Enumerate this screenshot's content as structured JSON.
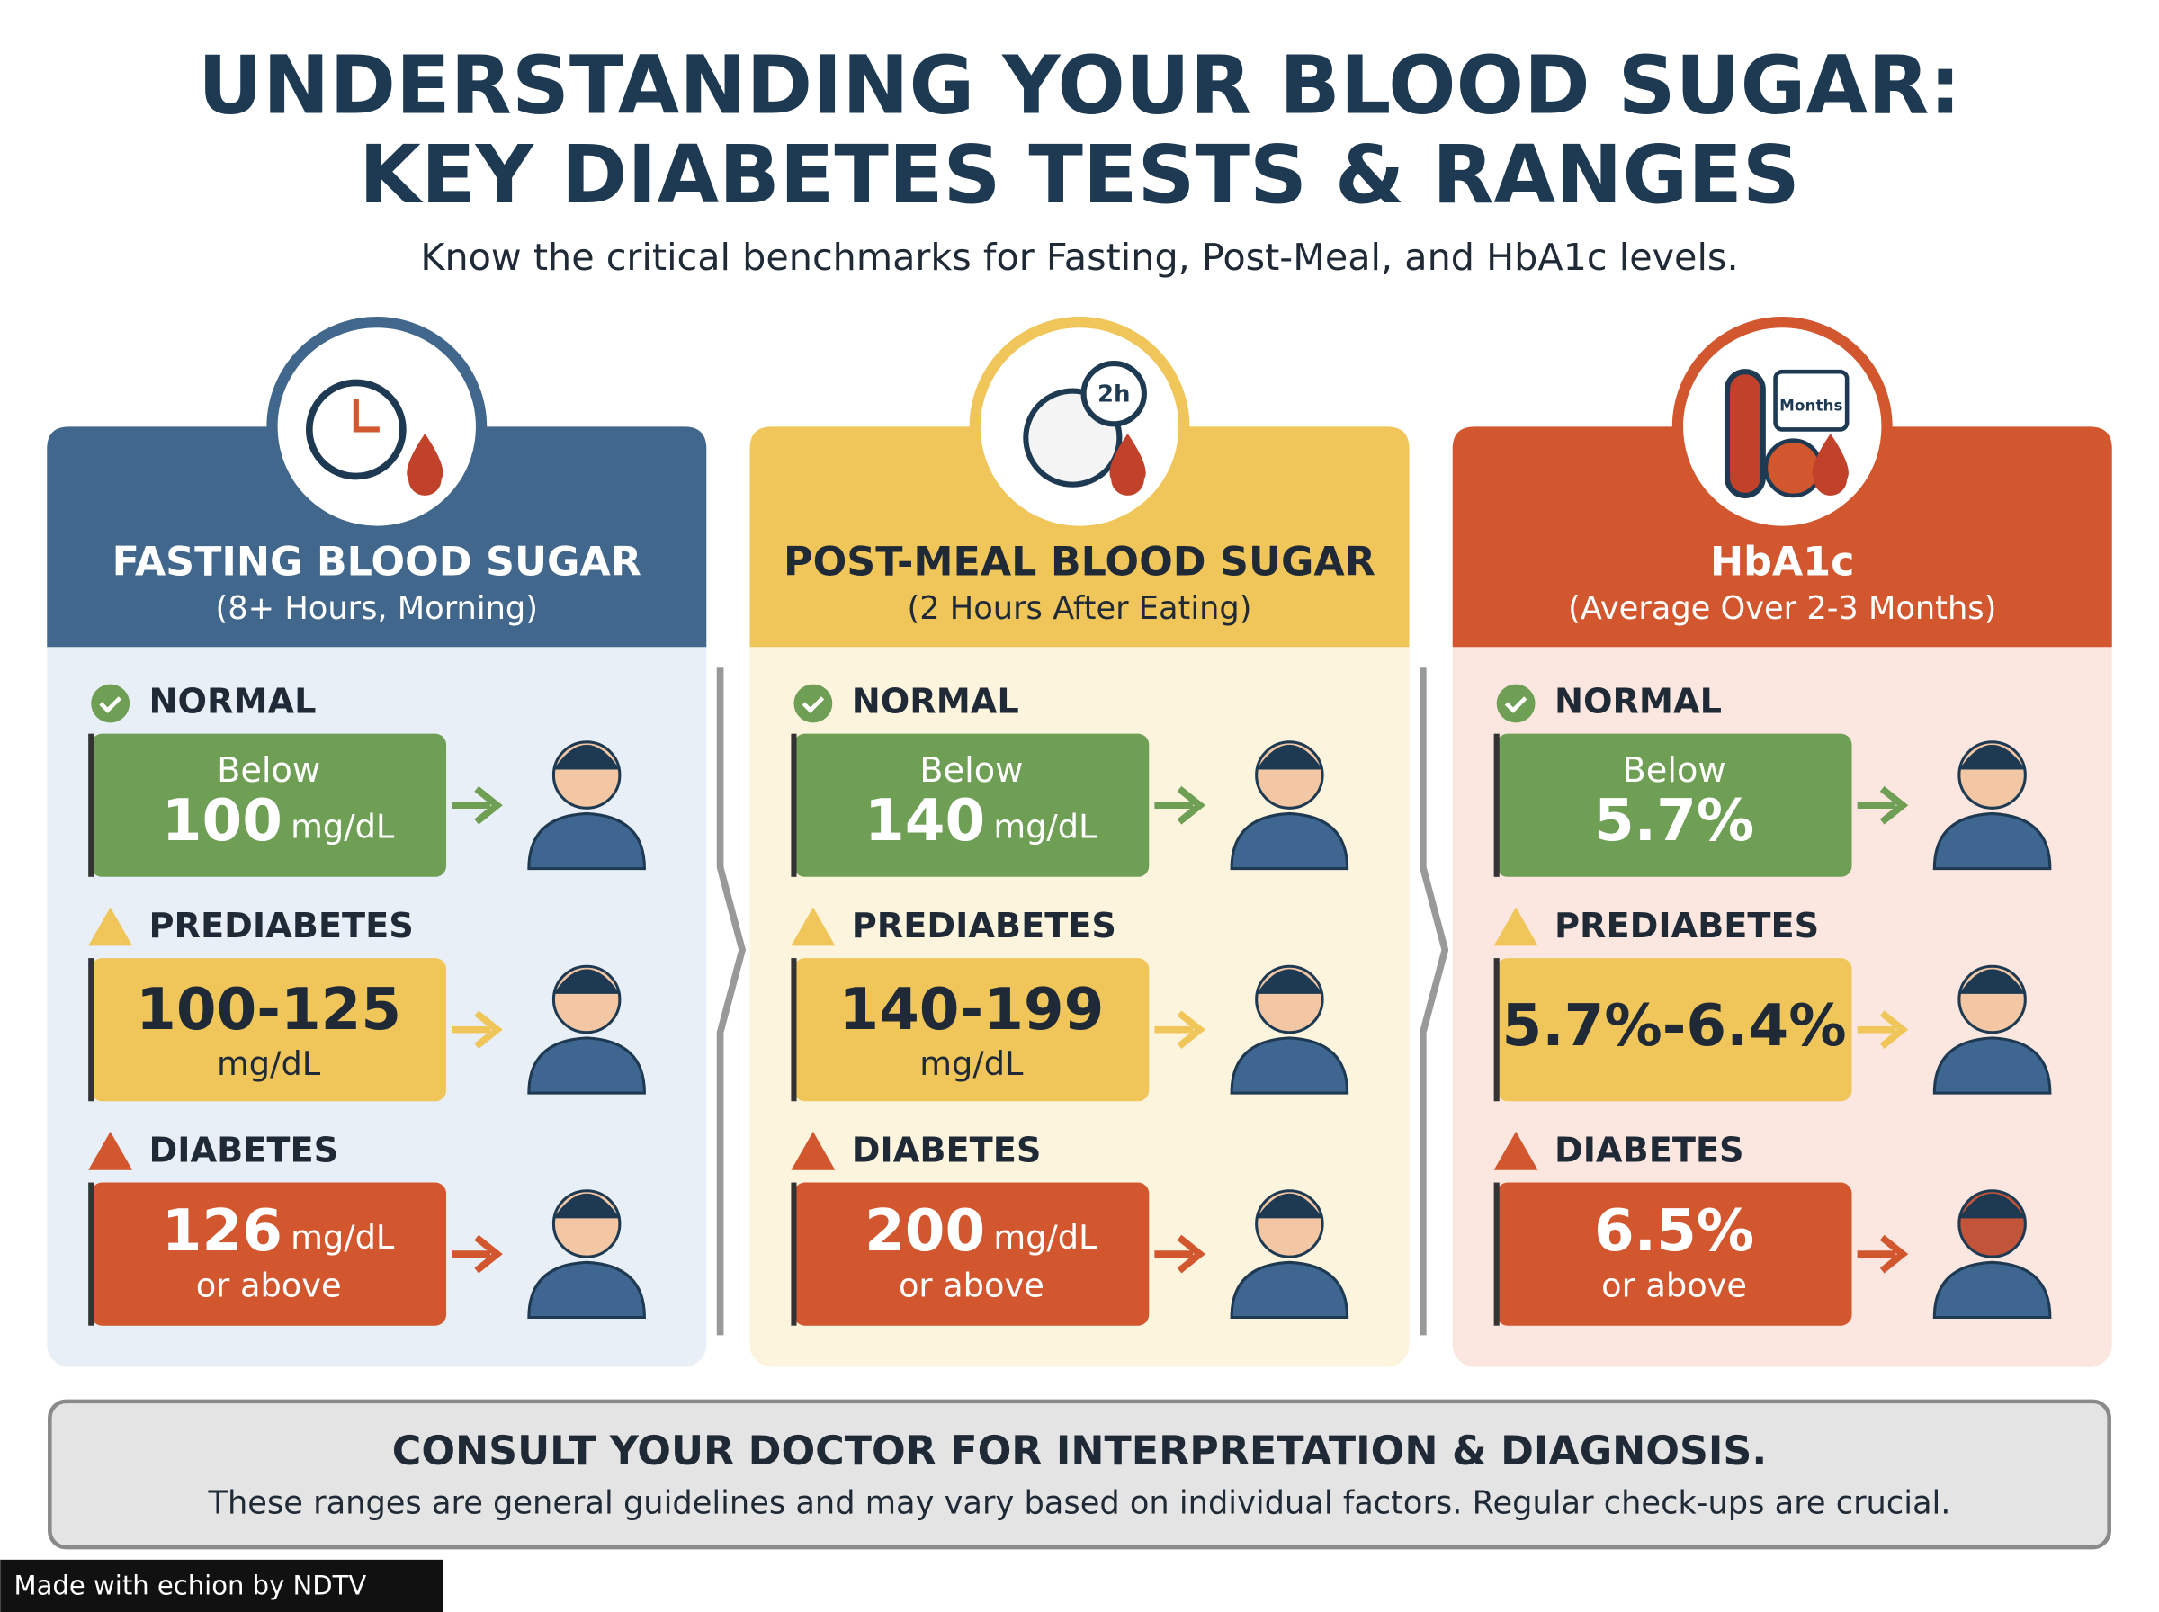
{
  "header": {
    "title_lines": [
      "UNDERSTANDING YOUR BLOOD SUGAR:",
      "KEY DIABETES TESTS & RANGES"
    ],
    "subtitle": "Know the critical benchmarks for Fasting, Post-Meal, and HbA1c levels."
  },
  "panels": [
    {
      "title": "FASTING BLOOD SUGAR",
      "subtitle": "(8+ Hours, Morning)",
      "levels": [
        {
          "status": "NORMAL",
          "top": "Below",
          "value": "100",
          "unit": "mg/dL"
        },
        {
          "status": "PREDIABETES",
          "value": "100-125",
          "unit": "mg/dL"
        },
        {
          "status": "DIABETES",
          "value": "126",
          "unit": "mg/dL",
          "bottom": "or above"
        }
      ]
    },
    {
      "title": "POST-MEAL BLOOD SUGAR",
      "subtitle": "(2 Hours After Eating)",
      "icon_label": "2h",
      "levels": [
        {
          "status": "NORMAL",
          "top": "Below",
          "value": "140",
          "unit": "mg/dL"
        },
        {
          "status": "PREDIABETES",
          "value": "140-199",
          "unit": "mg/dL"
        },
        {
          "status": "DIABETES",
          "value": "200",
          "unit": "mg/dL",
          "bottom": "or above"
        }
      ]
    },
    {
      "title": "HbA1c",
      "subtitle": "(Average Over 2-3 Months)",
      "icon_label": "Months",
      "levels": [
        {
          "status": "NORMAL",
          "top": "Below",
          "value": "5.7%"
        },
        {
          "status": "PREDIABETES",
          "value": "5.7%-6.4%"
        },
        {
          "status": "DIABETES",
          "value": "6.5%",
          "bottom": "or above"
        }
      ]
    }
  ],
  "footer": {
    "heading": "CONSULT YOUR DOCTOR FOR INTERPRETATION & DIAGNOSIS.",
    "text": "These ranges are general guidelines and may vary based on individual factors. Regular check-ups are crucial."
  },
  "watermark": "Made with echion by NDTV"
}
